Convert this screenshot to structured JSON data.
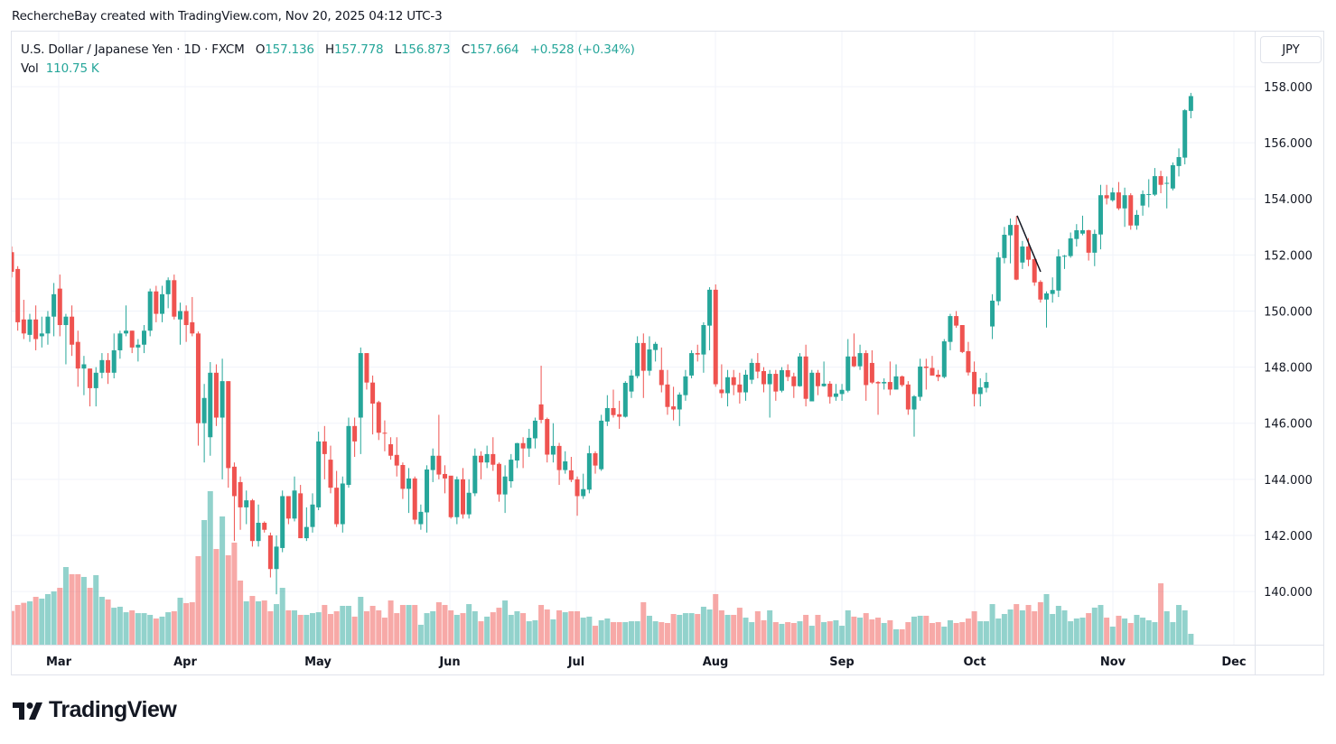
{
  "attribution": "RechercheBay created with TradingView.com, Nov 20, 2025 04:12 UTC-3",
  "legend": {
    "symbol": "U.S. Dollar / Japanese Yen · 1D · FXCM",
    "open_label": "O",
    "open": "157.136",
    "high_label": "H",
    "high": "157.778",
    "low_label": "L",
    "low": "156.873",
    "close_label": "C",
    "close": "157.664",
    "change": "+0.528 (+0.34%)",
    "vol_label": "Vol",
    "vol": "110.75 K"
  },
  "currency_button": "JPY",
  "logo_text": "TradingView",
  "colors": {
    "up": "#26a69a",
    "down": "#ef5350",
    "grid": "#f0f3fa",
    "trendline": "#131722"
  },
  "chart_data": {
    "type": "candlestick",
    "symbol": "USDJPY",
    "interval": "1D",
    "grid": true,
    "ylim": [
      138.3,
      159.9
    ],
    "price_ticks": [
      "140.000",
      "142.000",
      "144.000",
      "146.000",
      "148.000",
      "150.000",
      "152.000",
      "154.000",
      "156.000",
      "158.000"
    ],
    "price_tick_values": [
      140,
      142,
      144,
      146,
      148,
      150,
      152,
      154,
      156,
      158
    ],
    "month_labels": [
      "Mar",
      "Apr",
      "May",
      "Jun",
      "Jul",
      "Aug",
      "Sep",
      "Oct",
      "Nov",
      "Dec"
    ],
    "ohlc_fields": [
      "open",
      "high",
      "low",
      "close"
    ],
    "ohlc": [
      [
        152.1,
        152.3,
        151.2,
        151.4
      ],
      [
        151.5,
        151.6,
        149.3,
        149.6
      ],
      [
        149.7,
        150.4,
        149.0,
        149.2
      ],
      [
        149.15,
        149.9,
        148.9,
        149.7
      ],
      [
        149.7,
        150.2,
        148.6,
        149.0
      ],
      [
        149.1,
        149.8,
        148.7,
        149.2
      ],
      [
        149.2,
        150.0,
        148.8,
        149.8
      ],
      [
        149.8,
        151.0,
        149.1,
        150.6
      ],
      [
        150.8,
        151.3,
        149.1,
        149.5
      ],
      [
        149.5,
        149.9,
        148.1,
        149.8
      ],
      [
        149.8,
        150.2,
        148.4,
        148.8
      ],
      [
        148.9,
        149.3,
        147.3,
        147.95
      ],
      [
        147.95,
        148.4,
        147.0,
        148.1
      ],
      [
        147.95,
        147.95,
        146.6,
        147.25
      ],
      [
        147.25,
        148.0,
        146.6,
        147.8
      ],
      [
        147.8,
        148.5,
        147.6,
        148.25
      ],
      [
        148.25,
        148.5,
        147.4,
        147.8
      ],
      [
        147.8,
        149.2,
        147.6,
        148.6
      ],
      [
        148.6,
        149.3,
        148.3,
        149.2
      ],
      [
        149.2,
        150.2,
        149.1,
        149.3
      ],
      [
        149.3,
        149.3,
        148.5,
        148.7
      ],
      [
        148.7,
        149.0,
        148.2,
        148.8
      ],
      [
        148.8,
        149.5,
        148.5,
        149.3
      ],
      [
        149.3,
        150.8,
        149.1,
        150.7
      ],
      [
        150.7,
        150.9,
        149.6,
        149.9
      ],
      [
        149.9,
        150.9,
        149.6,
        150.6
      ],
      [
        150.6,
        151.2,
        150.1,
        151.1
      ],
      [
        151.1,
        151.3,
        149.7,
        149.8
      ],
      [
        149.7,
        150.3,
        148.8,
        150.0
      ],
      [
        150.0,
        150.2,
        148.9,
        149.5
      ],
      [
        149.6,
        150.5,
        149.1,
        149.2
      ],
      [
        149.2,
        149.27,
        145.2,
        146.0
      ],
      [
        146.0,
        147.4,
        144.6,
        146.9
      ],
      [
        145.5,
        148.18,
        144.84,
        147.8
      ],
      [
        147.8,
        148.1,
        145.9,
        146.2
      ],
      [
        146.2,
        148.3,
        144.0,
        147.5
      ],
      [
        147.5,
        147.5,
        143.7,
        144.4
      ],
      [
        144.45,
        144.6,
        141.8,
        143.4
      ],
      [
        143.9,
        144.1,
        142.2,
        143.0
      ],
      [
        143.0,
        143.6,
        142.4,
        143.25
      ],
      [
        143.25,
        143.3,
        141.6,
        141.8
      ],
      [
        141.8,
        143.1,
        141.6,
        142.45
      ],
      [
        142.45,
        142.5,
        142.1,
        142.2
      ],
      [
        142.0,
        142.1,
        140.5,
        140.8
      ],
      [
        140.8,
        142.0,
        139.9,
        141.6
      ],
      [
        141.55,
        143.6,
        141.4,
        143.4
      ],
      [
        143.4,
        143.4,
        142.4,
        142.6
      ],
      [
        142.6,
        144.1,
        142.5,
        143.6
      ],
      [
        143.5,
        143.8,
        141.9,
        141.9
      ],
      [
        141.9,
        143.0,
        141.8,
        142.3
      ],
      [
        142.3,
        143.5,
        142.1,
        143.1
      ],
      [
        143.0,
        145.7,
        142.9,
        145.35
      ],
      [
        145.35,
        145.9,
        144.0,
        144.9
      ],
      [
        144.7,
        145.2,
        143.5,
        143.7
      ],
      [
        143.7,
        144.3,
        142.3,
        142.4
      ],
      [
        142.4,
        144.1,
        142.1,
        143.85
      ],
      [
        143.8,
        146.2,
        143.7,
        145.9
      ],
      [
        145.9,
        146.2,
        144.8,
        145.35
      ],
      [
        146.2,
        148.7,
        144.9,
        148.5
      ],
      [
        148.5,
        148.5,
        147.2,
        147.45
      ],
      [
        147.45,
        147.7,
        145.6,
        146.7
      ],
      [
        146.75,
        146.8,
        145.4,
        145.66
      ],
      [
        145.66,
        146.1,
        145.0,
        145.64
      ],
      [
        145.25,
        145.5,
        144.7,
        144.84
      ],
      [
        144.87,
        145.5,
        144.1,
        144.49
      ],
      [
        144.51,
        144.6,
        143.3,
        143.66
      ],
      [
        143.66,
        144.4,
        142.8,
        144.03
      ],
      [
        144.03,
        144.1,
        142.4,
        142.56
      ],
      [
        142.4,
        143.1,
        142.2,
        142.84
      ],
      [
        142.82,
        144.5,
        142.1,
        144.35
      ],
      [
        144.33,
        145.1,
        143.9,
        144.84
      ],
      [
        144.84,
        146.3,
        144.0,
        144.17
      ],
      [
        144.19,
        144.5,
        143.5,
        144.03
      ],
      [
        144.13,
        144.1,
        142.6,
        142.65
      ],
      [
        142.65,
        144.1,
        142.4,
        144.0
      ],
      [
        144.0,
        144.4,
        142.6,
        142.75
      ],
      [
        142.75,
        144.0,
        142.6,
        143.52
      ],
      [
        143.5,
        145.1,
        143.4,
        144.84
      ],
      [
        144.84,
        145.0,
        144.0,
        144.6
      ],
      [
        144.6,
        145.2,
        144.4,
        144.9
      ],
      [
        144.9,
        145.5,
        144.3,
        144.52
      ],
      [
        144.55,
        144.6,
        143.2,
        143.46
      ],
      [
        143.46,
        144.5,
        142.8,
        144.1
      ],
      [
        143.93,
        144.9,
        143.7,
        144.7
      ],
      [
        144.67,
        145.3,
        144.4,
        145.29
      ],
      [
        145.29,
        145.5,
        144.4,
        145.1
      ],
      [
        145.1,
        145.8,
        144.8,
        145.48
      ],
      [
        145.46,
        146.2,
        145.1,
        146.09
      ],
      [
        146.67,
        148.05,
        146.0,
        146.12
      ],
      [
        146.15,
        146.2,
        144.6,
        144.88
      ],
      [
        144.88,
        146.0,
        144.6,
        145.19
      ],
      [
        145.19,
        145.3,
        143.8,
        144.33
      ],
      [
        144.33,
        145.0,
        144.2,
        144.64
      ],
      [
        144.32,
        144.8,
        143.9,
        143.98
      ],
      [
        144.0,
        144.1,
        142.7,
        143.4
      ],
      [
        143.4,
        144.2,
        143.3,
        143.65
      ],
      [
        143.63,
        145.2,
        143.5,
        144.93
      ],
      [
        144.93,
        145.0,
        144.2,
        144.49
      ],
      [
        144.36,
        146.3,
        144.3,
        146.09
      ],
      [
        146.06,
        147.0,
        145.9,
        146.54
      ],
      [
        146.54,
        147.2,
        146.2,
        146.29
      ],
      [
        146.32,
        146.8,
        145.8,
        146.23
      ],
      [
        146.23,
        147.5,
        146.2,
        147.44
      ],
      [
        147.13,
        147.9,
        146.9,
        147.7
      ],
      [
        147.68,
        149.1,
        147.6,
        148.86
      ],
      [
        148.86,
        149.2,
        146.9,
        147.87
      ],
      [
        147.87,
        149.1,
        147.7,
        148.63
      ],
      [
        148.61,
        148.9,
        148.2,
        148.83
      ],
      [
        147.9,
        148.7,
        147.1,
        147.36
      ],
      [
        147.38,
        147.9,
        146.3,
        146.58
      ],
      [
        146.6,
        147.3,
        146.1,
        146.49
      ],
      [
        146.49,
        147.1,
        145.9,
        147.02
      ],
      [
        147.0,
        147.9,
        146.8,
        147.67
      ],
      [
        147.7,
        148.6,
        147.6,
        148.5
      ],
      [
        148.5,
        148.8,
        148.2,
        148.45
      ],
      [
        148.45,
        149.6,
        147.8,
        149.5
      ],
      [
        149.48,
        150.85,
        148.6,
        150.76
      ],
      [
        150.76,
        150.95,
        147.3,
        147.39
      ],
      [
        147.2,
        148.1,
        146.9,
        147.07
      ],
      [
        147.07,
        147.9,
        146.6,
        147.64
      ],
      [
        147.64,
        147.9,
        147.0,
        147.36
      ],
      [
        147.38,
        147.8,
        146.7,
        147.1
      ],
      [
        147.1,
        147.9,
        146.8,
        147.73
      ],
      [
        147.55,
        148.3,
        147.4,
        148.15
      ],
      [
        148.15,
        148.5,
        147.6,
        147.84
      ],
      [
        147.86,
        148.0,
        147.1,
        147.39
      ],
      [
        147.39,
        147.9,
        146.2,
        147.76
      ],
      [
        147.76,
        147.9,
        146.8,
        147.13
      ],
      [
        147.16,
        148.0,
        147.1,
        147.89
      ],
      [
        147.89,
        148.1,
        147.5,
        147.65
      ],
      [
        147.67,
        147.8,
        146.9,
        147.32
      ],
      [
        147.32,
        148.5,
        147.3,
        148.38
      ],
      [
        148.38,
        148.8,
        146.6,
        146.87
      ],
      [
        146.78,
        147.9,
        146.8,
        147.8
      ],
      [
        147.8,
        147.9,
        147.0,
        147.32
      ],
      [
        147.32,
        148.2,
        147.3,
        147.41
      ],
      [
        147.41,
        147.5,
        146.7,
        146.94
      ],
      [
        146.94,
        147.4,
        146.8,
        147.06
      ],
      [
        147.04,
        147.4,
        146.8,
        147.19
      ],
      [
        147.16,
        149.0,
        147.1,
        148.38
      ],
      [
        148.38,
        149.2,
        148.0,
        148.03
      ],
      [
        148.03,
        148.8,
        147.9,
        148.5
      ],
      [
        148.5,
        148.6,
        146.8,
        147.36
      ],
      [
        148.15,
        148.6,
        147.4,
        147.45
      ],
      [
        147.47,
        147.5,
        146.3,
        147.42
      ],
      [
        147.42,
        147.6,
        147.2,
        147.47
      ],
      [
        147.47,
        148.2,
        147.0,
        147.2
      ],
      [
        147.2,
        148.1,
        147.2,
        147.67
      ],
      [
        147.67,
        147.7,
        147.3,
        147.36
      ],
      [
        147.38,
        147.5,
        146.3,
        146.49
      ],
      [
        146.49,
        147.0,
        145.52,
        146.96
      ],
      [
        146.94,
        148.3,
        146.8,
        148.02
      ],
      [
        148.02,
        148.3,
        147.2,
        147.97
      ],
      [
        147.97,
        148.4,
        147.7,
        147.7
      ],
      [
        147.73,
        147.9,
        147.5,
        147.65
      ],
      [
        147.65,
        149.0,
        147.6,
        148.92
      ],
      [
        148.9,
        149.9,
        148.6,
        149.82
      ],
      [
        149.82,
        150.0,
        149.4,
        149.48
      ],
      [
        149.5,
        149.5,
        148.5,
        148.54
      ],
      [
        148.57,
        148.9,
        147.7,
        147.81
      ],
      [
        147.83,
        148.2,
        146.6,
        147.04
      ],
      [
        147.04,
        147.6,
        146.6,
        147.28
      ],
      [
        147.26,
        147.8,
        147.1,
        147.47
      ],
      [
        149.45,
        150.6,
        149.0,
        150.37
      ],
      [
        150.35,
        152.1,
        150.2,
        151.91
      ],
      [
        151.89,
        153.0,
        151.7,
        152.72
      ],
      [
        152.7,
        153.3,
        151.7,
        153.07
      ],
      [
        153.07,
        153.38,
        151.1,
        151.12
      ],
      [
        151.73,
        152.5,
        151.5,
        152.3
      ],
      [
        152.3,
        152.6,
        151.6,
        151.83
      ],
      [
        151.85,
        151.9,
        150.9,
        151.02
      ],
      [
        151.04,
        151.1,
        150.3,
        150.41
      ],
      [
        150.41,
        150.7,
        149.41,
        150.63
      ],
      [
        150.61,
        151.2,
        150.3,
        150.75
      ],
      [
        150.73,
        152.2,
        150.5,
        151.95
      ],
      [
        151.94,
        152.0,
        151.5,
        151.97
      ],
      [
        151.96,
        152.8,
        151.9,
        152.59
      ],
      [
        152.57,
        153.1,
        152.3,
        152.88
      ],
      [
        152.76,
        153.4,
        152.7,
        152.88
      ],
      [
        152.88,
        152.9,
        151.8,
        152.08
      ],
      [
        152.08,
        152.9,
        151.6,
        152.75
      ],
      [
        152.73,
        154.5,
        152.2,
        154.13
      ],
      [
        154.13,
        154.5,
        153.8,
        154.02
      ],
      [
        153.95,
        154.4,
        153.9,
        154.23
      ],
      [
        154.23,
        154.6,
        153.6,
        153.66
      ],
      [
        153.66,
        154.4,
        153.0,
        154.13
      ],
      [
        154.13,
        154.2,
        152.9,
        153.05
      ],
      [
        153.05,
        153.6,
        152.9,
        153.43
      ],
      [
        153.76,
        154.3,
        153.4,
        154.17
      ],
      [
        154.15,
        154.7,
        153.7,
        154.17
      ],
      [
        154.15,
        155.1,
        154.1,
        154.81
      ],
      [
        154.81,
        155.0,
        154.2,
        154.5
      ],
      [
        154.54,
        154.8,
        153.66,
        154.57
      ],
      [
        154.37,
        155.3,
        154.3,
        155.2
      ],
      [
        155.17,
        155.8,
        154.8,
        155.49
      ],
      [
        155.47,
        157.2,
        155.23,
        157.16
      ],
      [
        157.136,
        157.778,
        156.873,
        157.664
      ]
    ],
    "volume_unit": "K",
    "volume": [
      344,
      405,
      427,
      442,
      488,
      470,
      516,
      543,
      580,
      792,
      719,
      719,
      691,
      580,
      709,
      488,
      461,
      377,
      387,
      331,
      350,
      322,
      322,
      304,
      267,
      286,
      331,
      341,
      479,
      424,
      433,
      903,
      1271,
      1566,
      976,
      1308,
      912,
      1041,
      654,
      442,
      497,
      442,
      451,
      341,
      414,
      580,
      350,
      350,
      304,
      304,
      322,
      331,
      405,
      313,
      341,
      396,
      396,
      286,
      488,
      341,
      396,
      350,
      276,
      451,
      322,
      405,
      405,
      405,
      203,
      322,
      341,
      433,
      405,
      350,
      304,
      322,
      414,
      341,
      239,
      286,
      331,
      377,
      451,
      304,
      341,
      322,
      239,
      249,
      405,
      359,
      258,
      350,
      331,
      341,
      341,
      276,
      286,
      193,
      249,
      267,
      230,
      230,
      230,
      239,
      239,
      433,
      295,
      239,
      230,
      221,
      313,
      304,
      322,
      322,
      313,
      387,
      359,
      516,
      350,
      304,
      304,
      377,
      276,
      230,
      341,
      249,
      350,
      230,
      212,
      230,
      221,
      239,
      304,
      193,
      304,
      230,
      239,
      249,
      193,
      350,
      286,
      276,
      322,
      258,
      276,
      221,
      249,
      157,
      157,
      230,
      286,
      295,
      295,
      221,
      230,
      184,
      249,
      221,
      230,
      267,
      341,
      239,
      239,
      414,
      267,
      313,
      359,
      414,
      350,
      405,
      341,
      433,
      516,
      313,
      396,
      350,
      239,
      267,
      276,
      322,
      378,
      405,
      276,
      184,
      295,
      267,
      221,
      304,
      276,
      249,
      230,
      626,
      341,
      230,
      405,
      350,
      110.75
    ],
    "drawings": [
      {
        "type": "trendline",
        "from_price": 153.4,
        "to_price": 151.4
      }
    ]
  }
}
